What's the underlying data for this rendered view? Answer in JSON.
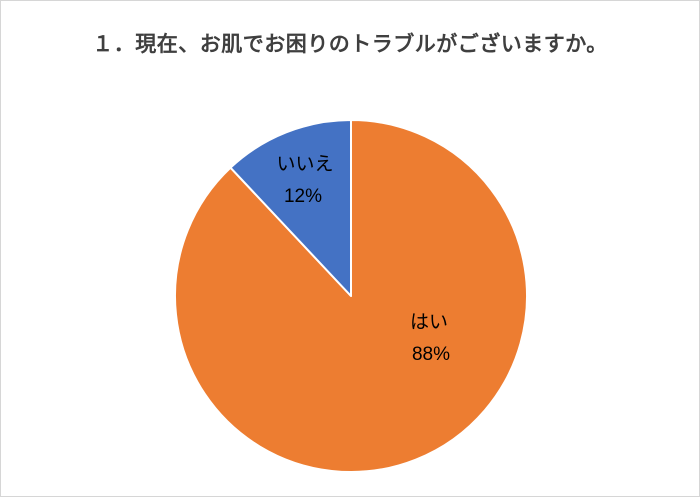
{
  "page": {
    "title": "１．現在、お肌でお困りのトラブルがございますか。"
  },
  "chart_data": {
    "type": "pie",
    "title": "１．現在、お肌でお困りのトラブルがございますか。",
    "categories": [
      "はい",
      "いいえ"
    ],
    "values": [
      88,
      12
    ],
    "value_labels": [
      "88%",
      "12%"
    ],
    "colors": [
      "#ED7D31",
      "#4472C4"
    ],
    "slice_separator_color": "#FFFFFF",
    "start_angle_deg": 0,
    "direction": "clockwise",
    "legend": "none",
    "background": "#FFFFFF",
    "label_color": "#000000"
  }
}
